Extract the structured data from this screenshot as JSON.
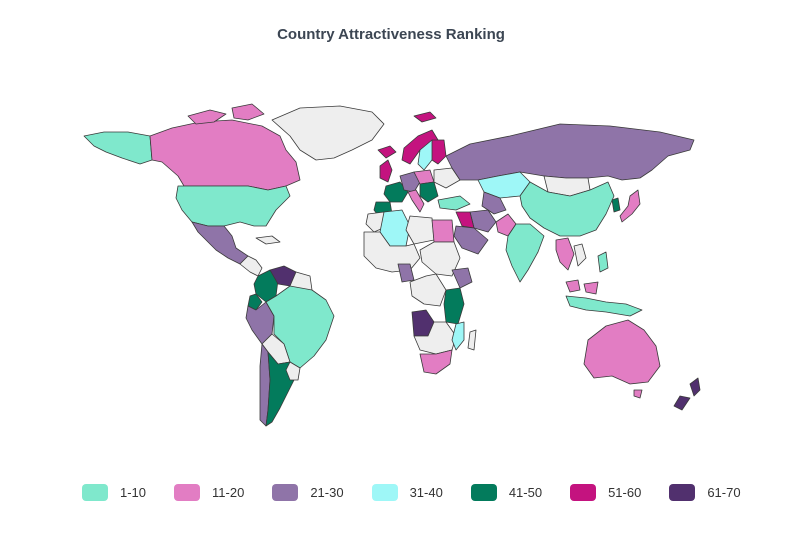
{
  "title": "Country Attractiveness Ranking",
  "colors": {
    "no_data": "#eeeeee",
    "r1": "#7fe8cc",
    "r2": "#e27dc3",
    "r3": "#8f74a8",
    "r4": "#9ef7f7",
    "r5": "#037b5c",
    "r6": "#c4137f",
    "r7": "#51306e"
  },
  "legend": [
    {
      "label": "1-10",
      "color": "#7fe8cc"
    },
    {
      "label": "11-20",
      "color": "#e27dc3"
    },
    {
      "label": "21-30",
      "color": "#8f74a8"
    },
    {
      "label": "31-40",
      "color": "#9ef7f7"
    },
    {
      "label": "41-50",
      "color": "#037b5c"
    },
    {
      "label": "51-60",
      "color": "#c4137f"
    },
    {
      "label": "61-70",
      "color": "#51306e"
    }
  ]
}
